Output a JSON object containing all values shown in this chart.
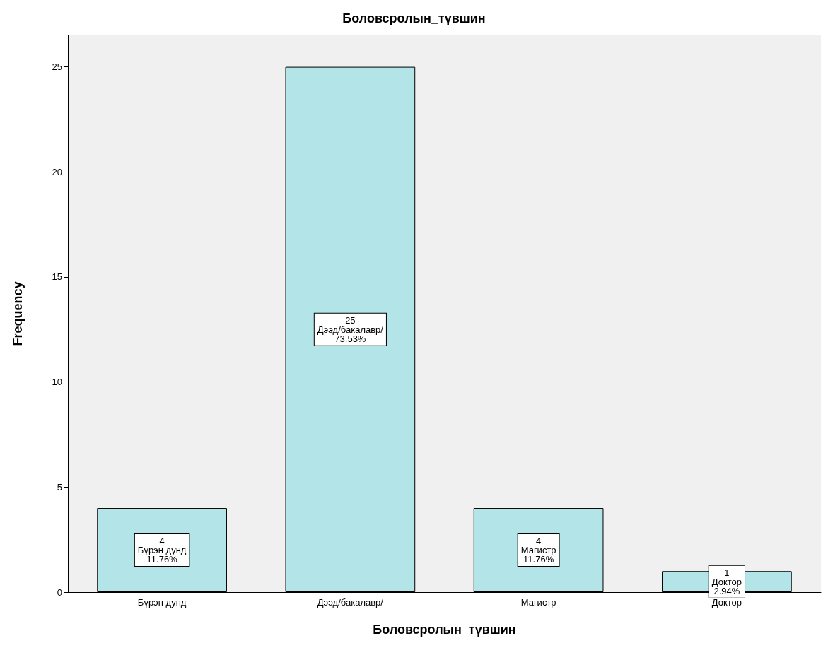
{
  "chart_data": {
    "type": "bar",
    "title": "Боловсролын_түвшин",
    "xlabel": "Боловсролын_түвшин",
    "ylabel": "Frequency",
    "categories": [
      "Бүрэн дунд",
      "Дээд/бакалавр/",
      "Магистр",
      "Доктор"
    ],
    "values": [
      4,
      25,
      4,
      1
    ],
    "value_labels": [
      "4\nБүрэн дунд\n11.76%",
      "25\nДээд/бакалавр/\n73.53%",
      "4\nМагистр\n11.76%",
      "1\nДоктор\n2.94%"
    ],
    "color": "#b3e5e8",
    "ylim": [
      0,
      26.5
    ],
    "yticks": [
      0,
      5,
      10,
      15,
      20,
      25
    ]
  }
}
